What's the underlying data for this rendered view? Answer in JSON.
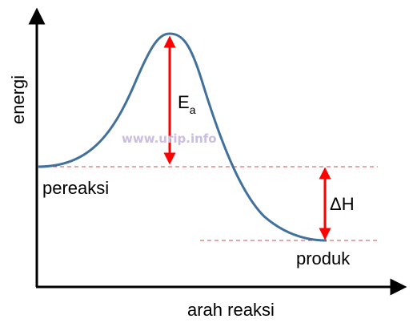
{
  "diagram": {
    "axes": {
      "y_label": "energi",
      "x_label": "arah reaksi"
    },
    "labels": {
      "reactant": "pereaksi",
      "product": "produk",
      "activation_energy_main": "E",
      "activation_energy_sub": "a",
      "enthalpy_change": "ΔH"
    },
    "watermark": "www.urip.info",
    "colors": {
      "curve": "#41719c",
      "arrows": "#ff0000",
      "dashed_lines": "#c0504d",
      "axes": "#000000",
      "watermark": "#cbbde3"
    }
  }
}
